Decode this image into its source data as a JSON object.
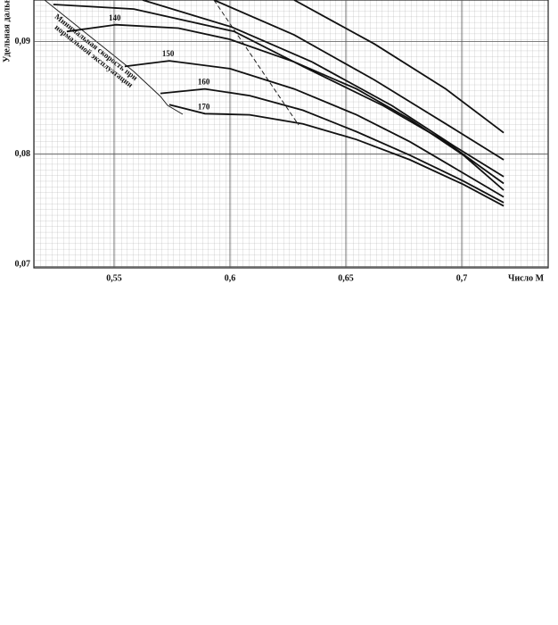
{
  "chart_data": {
    "type": "line",
    "y_label": "Удельная дальнос",
    "x_label": "Число М",
    "annotations": [
      "Минимальная скорость при",
      "нормальной эксплуатации"
    ],
    "xlim": [
      0.5154,
      0.7373
    ],
    "ylim": [
      0.0699,
      0.0937
    ],
    "xticks": [
      {
        "value": 0.55,
        "label": "0,55"
      },
      {
        "value": 0.6,
        "label": "0,6"
      },
      {
        "value": 0.65,
        "label": "0,65"
      },
      {
        "value": 0.7,
        "label": "0,7"
      }
    ],
    "yticks": [
      {
        "value": 0.07,
        "label": "0,07"
      },
      {
        "value": 0.08,
        "label": "0,08"
      },
      {
        "value": 0.09,
        "label": "0,09"
      }
    ],
    "grid": true,
    "color": "#111111",
    "series": [
      {
        "x": [
          0.6277,
          0.6623,
          0.6931,
          0.7181
        ],
        "values": [
          0.0937,
          0.0898,
          0.0858,
          0.0819
        ]
      },
      {
        "x": [
          0.5931,
          0.6277,
          0.6623,
          0.6931,
          0.7181
        ],
        "values": [
          0.0937,
          0.0906,
          0.0866,
          0.0827,
          0.0795
        ]
      },
      {
        "x": [
          0.5623,
          0.6008,
          0.6354,
          0.67,
          0.6969,
          0.7181
        ],
        "values": [
          0.0937,
          0.0913,
          0.0882,
          0.0843,
          0.0807,
          0.078
        ]
      },
      {
        "x": [
          0.5238,
          0.5585,
          0.6019,
          0.6315,
          0.6662,
          0.6931,
          0.7181
        ],
        "values": [
          0.0933,
          0.0929,
          0.0909,
          0.0878,
          0.0843,
          0.0811,
          0.0774
        ]
      },
      {
        "name": "140",
        "x": [
          0.5296,
          0.5508,
          0.5777,
          0.6,
          0.6277,
          0.6546,
          0.6777,
          0.7008,
          0.7181
        ],
        "values": [
          0.0909,
          0.0915,
          0.0912,
          0.0902,
          0.0882,
          0.0858,
          0.0831,
          0.0799,
          0.0768
        ]
      },
      {
        "name": "150",
        "x": [
          0.5546,
          0.5738,
          0.6,
          0.6277,
          0.6546,
          0.6777,
          0.7008,
          0.7181
        ],
        "values": [
          0.0878,
          0.0883,
          0.0876,
          0.0858,
          0.0835,
          0.0811,
          0.0783,
          0.0762
        ]
      },
      {
        "name": "160",
        "x": [
          0.57,
          0.5892,
          0.6085,
          0.6315,
          0.6546,
          0.6777,
          0.7008,
          0.7181
        ],
        "values": [
          0.0854,
          0.0858,
          0.0852,
          0.0839,
          0.082,
          0.0799,
          0.0776,
          0.0757
        ]
      },
      {
        "name": "170",
        "x": [
          0.5738,
          0.5892,
          0.6085,
          0.6315,
          0.6546,
          0.6777,
          0.7008,
          0.7181
        ],
        "values": [
          0.0844,
          0.0836,
          0.0835,
          0.0827,
          0.0813,
          0.0795,
          0.0773,
          0.0754
        ]
      }
    ]
  }
}
